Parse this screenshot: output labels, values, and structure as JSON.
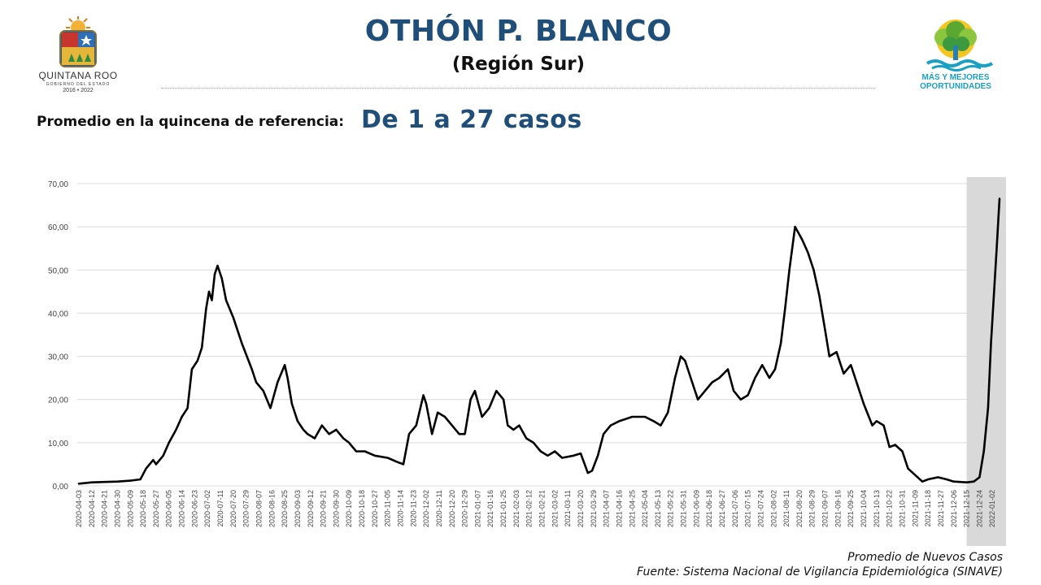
{
  "header": {
    "title": "OTHÓN P. BLANCO",
    "subtitle": "(Región Sur)"
  },
  "summary": {
    "label": "Promedio en la quincena de referencia:",
    "value": "De 1 a 27 casos"
  },
  "logos": {
    "left": {
      "line1": "QUINTANA ROO",
      "line2": "GOBIERNO DEL ESTADO",
      "line3": "2016 • 2022"
    },
    "right": {
      "line1": "MÁS Y MEJORES",
      "line2": "OPORTUNIDADES"
    }
  },
  "colors": {
    "title": "#1f4e79",
    "line": "#000000",
    "shade": "#d9d9d9",
    "grid": "#d9d9d9",
    "logo_text": "#1aa0c4"
  },
  "footer": {
    "series_name": "Promedio de Nuevos Casos",
    "source": "Fuente: Sistema Nacional de Vigilancia Epidemiológica (SINAVE)"
  },
  "chart_data": {
    "type": "line",
    "title": "",
    "xlabel": "",
    "ylabel": "",
    "ylim": [
      0,
      70
    ],
    "y_ticks": [
      0,
      10,
      20,
      30,
      40,
      50,
      60,
      70
    ],
    "y_tick_labels": [
      "0,00",
      "10,00",
      "20,00",
      "30,00",
      "40,00",
      "50,00",
      "60,00",
      "70,00"
    ],
    "grid": true,
    "x_tick_labels": [
      "2020-04-03",
      "2020-04-12",
      "2020-04-21",
      "2020-04-30",
      "2020-05-09",
      "2020-05-18",
      "2020-05-27",
      "2020-06-05",
      "2020-06-14",
      "2020-06-23",
      "2020-07-02",
      "2020-07-11",
      "2020-07-20",
      "2020-07-29",
      "2020-08-07",
      "2020-08-16",
      "2020-08-25",
      "2020-09-03",
      "2020-09-12",
      "2020-09-21",
      "2020-09-30",
      "2020-10-09",
      "2020-10-18",
      "2020-10-27",
      "2020-11-05",
      "2020-11-14",
      "2020-11-23",
      "2020-12-02",
      "2020-12-11",
      "2020-12-20",
      "2020-12-29",
      "2021-01-07",
      "2021-01-16",
      "2021-01-25",
      "2021-02-03",
      "2021-02-12",
      "2021-02-21",
      "2021-03-02",
      "2021-03-11",
      "2021-03-20",
      "2021-03-29",
      "2021-04-07",
      "2021-04-16",
      "2021-04-25",
      "2021-05-04",
      "2021-05-13",
      "2021-05-22",
      "2021-05-31",
      "2021-06-09",
      "2021-06-18",
      "2021-06-27",
      "2021-07-06",
      "2021-07-15",
      "2021-07-24",
      "2021-08-02",
      "2021-08-11",
      "2021-08-20",
      "2021-08-29",
      "2021-09-07",
      "2021-09-16",
      "2021-09-25",
      "2021-10-04",
      "2021-10-13",
      "2021-10-22",
      "2021-10-31",
      "2021-11-09",
      "2021-11-18",
      "2021-11-27",
      "2021-12-06",
      "2021-12-15",
      "2021-12-24",
      "2022-01-02"
    ],
    "shaded_range": [
      "2021-12-15",
      "2022-01-07"
    ],
    "series": [
      {
        "name": "Promedio de Nuevos Casos",
        "x": [
          "2020-04-03",
          "2020-04-12",
          "2020-04-21",
          "2020-04-30",
          "2020-05-09",
          "2020-05-16",
          "2020-05-20",
          "2020-05-25",
          "2020-05-27",
          "2020-06-01",
          "2020-06-05",
          "2020-06-10",
          "2020-06-14",
          "2020-06-18",
          "2020-06-21",
          "2020-06-25",
          "2020-06-28",
          "2020-07-01",
          "2020-07-03",
          "2020-07-05",
          "2020-07-07",
          "2020-07-09",
          "2020-07-12",
          "2020-07-15",
          "2020-07-20",
          "2020-07-23",
          "2020-07-26",
          "2020-08-02",
          "2020-08-05",
          "2020-08-10",
          "2020-08-15",
          "2020-08-20",
          "2020-08-25",
          "2020-08-27",
          "2020-08-30",
          "2020-09-03",
          "2020-09-07",
          "2020-09-10",
          "2020-09-15",
          "2020-09-20",
          "2020-09-25",
          "2020-09-30",
          "2020-10-05",
          "2020-10-09",
          "2020-10-14",
          "2020-10-20",
          "2020-10-27",
          "2020-11-05",
          "2020-11-12",
          "2020-11-16",
          "2020-11-20",
          "2020-11-25",
          "2020-11-30",
          "2020-12-02",
          "2020-12-06",
          "2020-12-10",
          "2020-12-15",
          "2020-12-20",
          "2020-12-25",
          "2020-12-29",
          "2021-01-02",
          "2021-01-05",
          "2021-01-10",
          "2021-01-15",
          "2021-01-20",
          "2021-01-25",
          "2021-01-28",
          "2021-02-01",
          "2021-02-05",
          "2021-02-10",
          "2021-02-15",
          "2021-02-20",
          "2021-02-25",
          "2021-03-02",
          "2021-03-07",
          "2021-03-15",
          "2021-03-20",
          "2021-03-25",
          "2021-03-28",
          "2021-04-01",
          "2021-04-05",
          "2021-04-10",
          "2021-04-16",
          "2021-04-25",
          "2021-05-04",
          "2021-05-10",
          "2021-05-15",
          "2021-05-20",
          "2021-05-25",
          "2021-05-29",
          "2021-06-01",
          "2021-06-05",
          "2021-06-10",
          "2021-06-15",
          "2021-06-20",
          "2021-06-25",
          "2021-07-01",
          "2021-07-05",
          "2021-07-10",
          "2021-07-15",
          "2021-07-20",
          "2021-07-25",
          "2021-07-30",
          "2021-08-03",
          "2021-08-07",
          "2021-08-10",
          "2021-08-13",
          "2021-08-17",
          "2021-08-22",
          "2021-08-26",
          "2021-08-30",
          "2021-09-03",
          "2021-09-07",
          "2021-09-10",
          "2021-09-15",
          "2021-09-20",
          "2021-09-25",
          "2021-09-30",
          "2021-10-04",
          "2021-10-10",
          "2021-10-13",
          "2021-10-18",
          "2021-10-22",
          "2021-10-26",
          "2021-10-31",
          "2021-11-04",
          "2021-11-09",
          "2021-11-14",
          "2021-11-18",
          "2021-11-25",
          "2021-12-01",
          "2021-12-06",
          "2021-12-15",
          "2021-12-20",
          "2021-12-24",
          "2021-12-27",
          "2021-12-30",
          "2022-01-01",
          "2022-01-03",
          "2022-01-05",
          "2022-01-07"
        ],
        "y": [
          0.5,
          0.8,
          0.9,
          1.0,
          1.2,
          1.5,
          4.0,
          6.0,
          5.0,
          7.0,
          10.0,
          13.0,
          16.0,
          18.0,
          27.0,
          29.0,
          32.0,
          41.0,
          45.0,
          43.0,
          49.0,
          51.0,
          48.0,
          43.0,
          39.0,
          36.0,
          33.0,
          27.0,
          24.0,
          22.0,
          18.0,
          24.0,
          28.0,
          25.0,
          19.0,
          15.0,
          13.0,
          12.0,
          11.0,
          14.0,
          12.0,
          13.0,
          11.0,
          10.0,
          8.0,
          8.0,
          7.0,
          6.5,
          5.5,
          5.0,
          12.0,
          14.0,
          21.0,
          19.0,
          12.0,
          17.0,
          16.0,
          14.0,
          12.0,
          12.0,
          20.0,
          22.0,
          16.0,
          18.0,
          22.0,
          20.0,
          14.0,
          13.0,
          14.0,
          11.0,
          10.0,
          8.0,
          7.0,
          8.0,
          6.5,
          7.0,
          7.5,
          3.0,
          3.5,
          7.0,
          12.0,
          14.0,
          15.0,
          16.0,
          16.0,
          15.0,
          14.0,
          17.0,
          25.0,
          30.0,
          29.0,
          25.0,
          20.0,
          22.0,
          24.0,
          25.0,
          27.0,
          22.0,
          20.0,
          21.0,
          25.0,
          28.0,
          25.0,
          27.0,
          33.0,
          41.0,
          50.0,
          60.0,
          57.0,
          54.0,
          50.0,
          44.0,
          36.0,
          30.0,
          31.0,
          26.0,
          28.0,
          23.0,
          19.0,
          14.0,
          15.0,
          14.0,
          9.0,
          9.5,
          8.0,
          4.0,
          2.5,
          1.0,
          1.5,
          2.0,
          1.5,
          1.0,
          0.8,
          1.0,
          2.0,
          8.0,
          18.0,
          33.0,
          44.0,
          55.0,
          66.5
        ]
      }
    ]
  }
}
